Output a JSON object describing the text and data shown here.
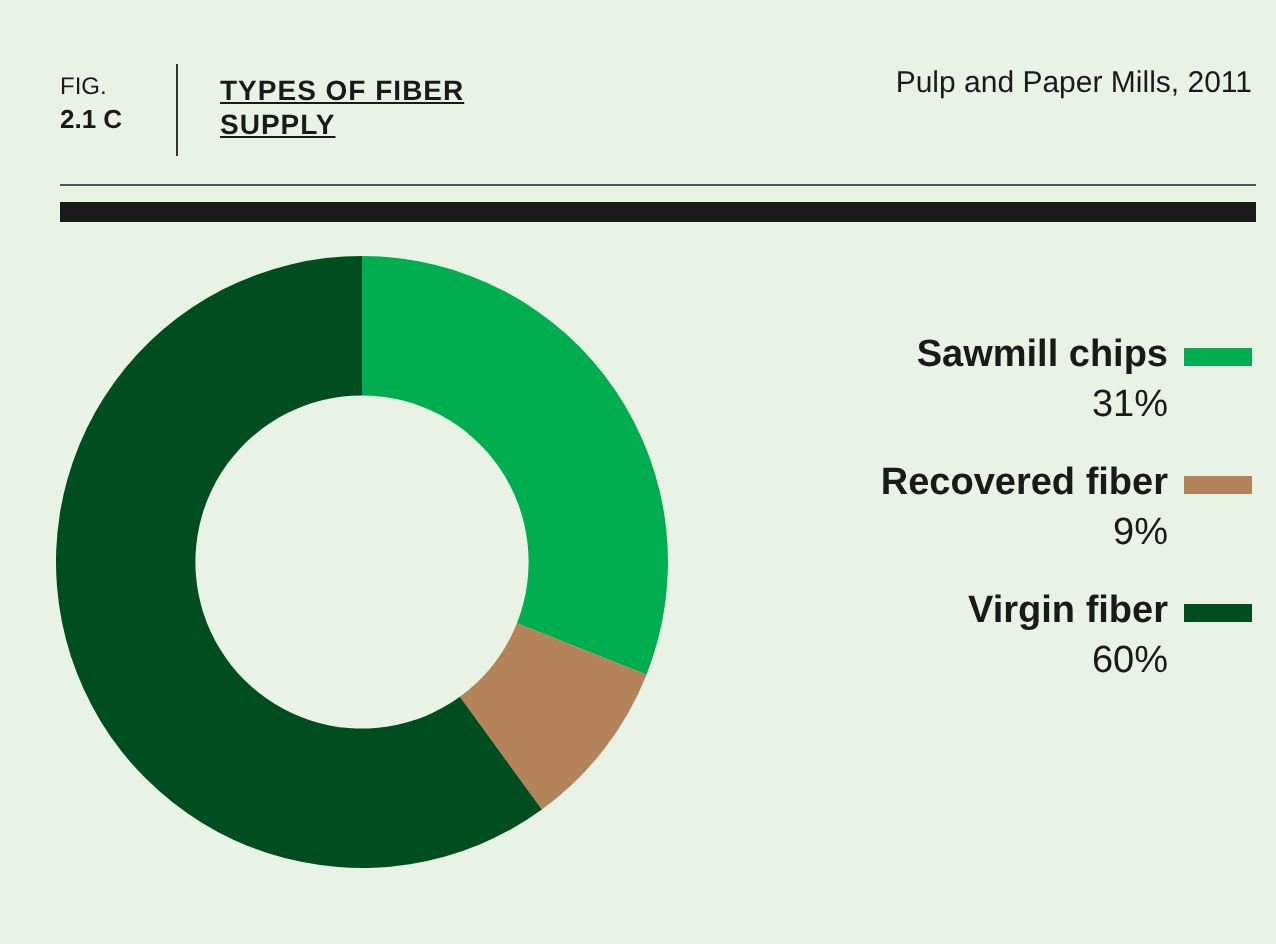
{
  "chart_data": {
    "type": "donut",
    "title": "TYPES OF FIBER SUPPLY",
    "subtitle": "Pulp and Paper Mills, 2011",
    "annotations": [
      "FIG.",
      "2.1 C"
    ],
    "categories": [
      "Sawmill chips",
      "Recovered fiber",
      "Virgin fiber"
    ],
    "values": [
      31,
      9,
      60
    ],
    "value_labels": [
      "31%",
      "9%",
      "60%"
    ],
    "colors": [
      "#00ad4f",
      "#b5835a",
      "#004d1f"
    ],
    "legend": "right"
  }
}
